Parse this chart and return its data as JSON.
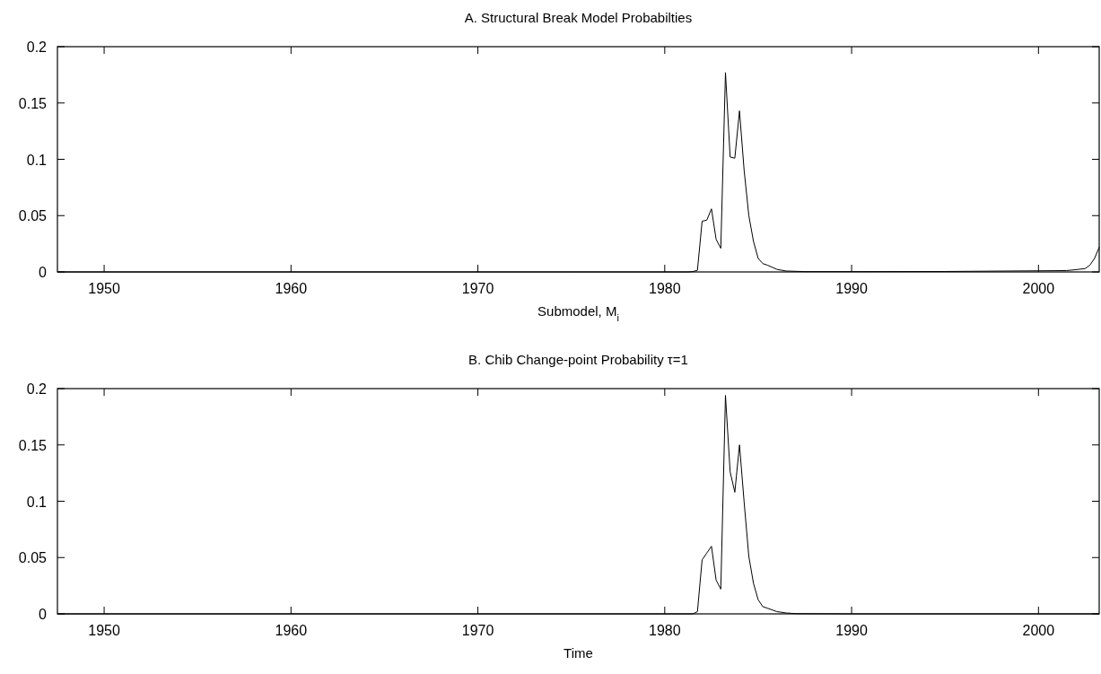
{
  "chart_data": [
    {
      "type": "line",
      "title": "A. Structural Break Model Probabilties",
      "xlabel": "Submodel, M$_{i}$",
      "series": [
        {
          "color": "#000000",
          "x": [
            1947.5,
            1960,
            1975,
            1981.25,
            1981.5,
            1981.75,
            1982.0,
            1982.25,
            1982.5,
            1982.75,
            1983.0,
            1983.25,
            1983.5,
            1983.75,
            1984.0,
            1984.25,
            1984.5,
            1984.75,
            1985.0,
            1985.25,
            1985.5,
            1986.0,
            1986.5,
            1987.5,
            1990,
            1995,
            2000,
            2001.5,
            2002,
            2002.5,
            2002.75,
            2003,
            2003.25
          ],
          "values": [
            0,
            0,
            0,
            0,
            0.0003,
            0.0015,
            0.045,
            0.046,
            0.056,
            0.029,
            0.021,
            0.177,
            0.102,
            0.101,
            0.143,
            0.09,
            0.05,
            0.027,
            0.012,
            0.0074,
            0.006,
            0.0023,
            0.0008,
            0.0003,
            0.0003,
            0.0004,
            0.001,
            0.0012,
            0.002,
            0.003,
            0.006,
            0.012,
            0.022
          ]
        }
      ],
      "xlim": [
        1947.5,
        2003.25
      ],
      "xticks": [
        1950,
        1960,
        1970,
        1980,
        1990,
        2000
      ],
      "ylim": [
        0,
        0.2
      ],
      "yticks": [
        0,
        0.05,
        0.1,
        0.15,
        0.2
      ],
      "grid": false,
      "marker": "none",
      "line_style": "solid"
    },
    {
      "type": "line",
      "title": "B. Chib Change-point Probability τ=1",
      "xlabel": "Time",
      "series": [
        {
          "color": "#000000",
          "x": [
            1947.5,
            1960,
            1975,
            1981.25,
            1981.5,
            1981.75,
            1982.0,
            1982.25,
            1982.5,
            1982.75,
            1983.0,
            1983.25,
            1983.5,
            1983.75,
            1984.0,
            1984.25,
            1984.5,
            1984.75,
            1985.0,
            1985.25,
            1985.5,
            1986.0,
            1986.5,
            1987.0,
            1990,
            2000,
            2003.25
          ],
          "values": [
            0,
            0,
            0,
            0,
            0,
            0.002,
            0.048,
            0.054,
            0.06,
            0.03,
            0.022,
            0.194,
            0.126,
            0.108,
            0.15,
            0.099,
            0.051,
            0.027,
            0.0125,
            0.0064,
            0.005,
            0.002,
            0.0008,
            0.0002,
            0,
            0,
            0
          ]
        }
      ],
      "xlim": [
        1947.5,
        2003.25
      ],
      "xticks": [
        1950,
        1960,
        1970,
        1980,
        1990,
        2000
      ],
      "ylim": [
        0,
        0.2
      ],
      "yticks": [
        0,
        0.05,
        0.1,
        0.15,
        0.2
      ],
      "grid": false,
      "marker": "none",
      "line_style": "solid"
    }
  ]
}
